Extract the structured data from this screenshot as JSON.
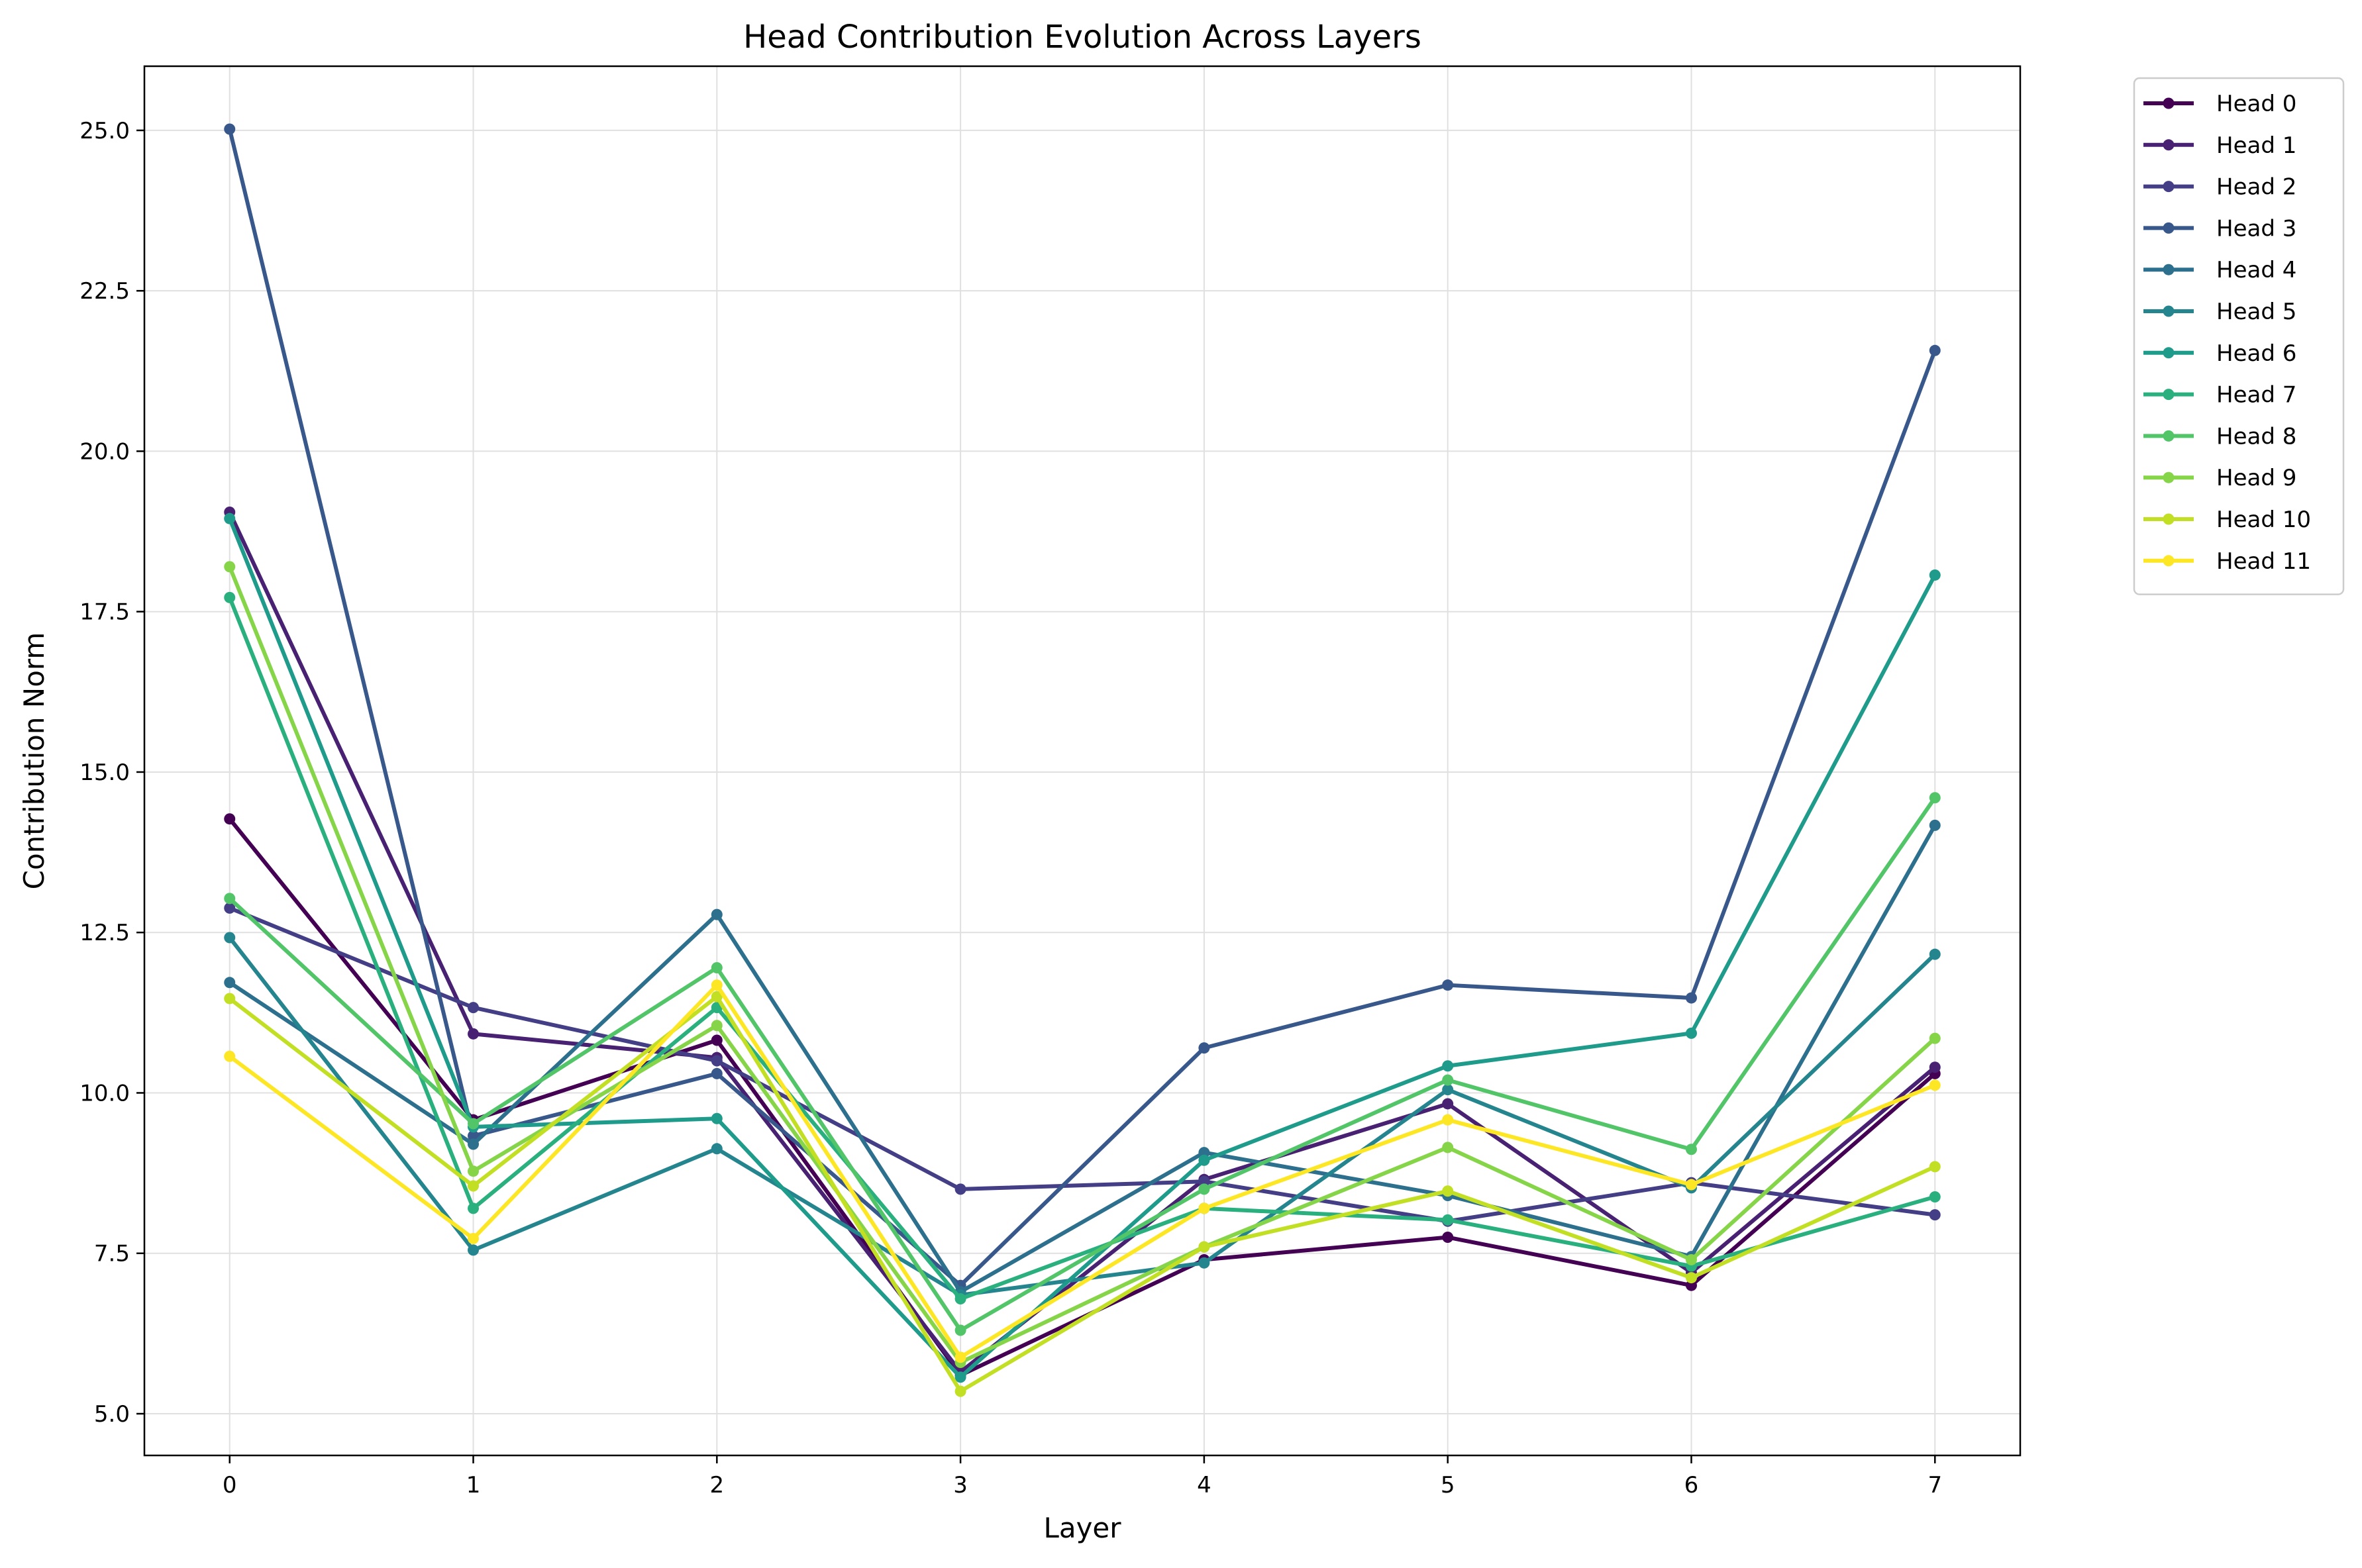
{
  "chart_data": {
    "type": "line",
    "title": "Head Contribution Evolution Across Layers",
    "xlabel": "Layer",
    "ylabel": "Contribution Norm",
    "x": [
      0,
      1,
      2,
      3,
      4,
      5,
      6,
      7
    ],
    "x_ticks": [
      "0",
      "1",
      "2",
      "3",
      "4",
      "5",
      "6",
      "7"
    ],
    "y_ticks": [
      "5.0",
      "7.5",
      "10.0",
      "12.5",
      "15.0",
      "17.5",
      "20.0",
      "22.5",
      "25.0"
    ],
    "y_tick_values": [
      5.0,
      7.5,
      10.0,
      12.5,
      15.0,
      17.5,
      20.0,
      22.5,
      25.0
    ],
    "xlim": [
      -0.35,
      7.35
    ],
    "ylim": [
      4.35,
      26.0
    ],
    "grid": true,
    "legend_position": "outside-right-top",
    "series": [
      {
        "name": "Head 0",
        "color": "#440154",
        "values": [
          14.27,
          9.58,
          10.82,
          5.6,
          7.4,
          7.75,
          7.0,
          10.3
        ]
      },
      {
        "name": "Head 1",
        "color": "#482173",
        "values": [
          19.05,
          10.92,
          10.55,
          5.65,
          8.65,
          9.83,
          7.2,
          10.4
        ]
      },
      {
        "name": "Head 2",
        "color": "#433e85",
        "values": [
          12.88,
          11.33,
          10.5,
          8.5,
          8.62,
          8.0,
          8.6,
          8.1
        ]
      },
      {
        "name": "Head 3",
        "color": "#38588c",
        "values": [
          25.02,
          9.33,
          10.3,
          7.0,
          10.7,
          11.68,
          11.48,
          21.57
        ]
      },
      {
        "name": "Head 4",
        "color": "#2d708e",
        "values": [
          11.72,
          9.2,
          12.78,
          6.9,
          9.07,
          8.4,
          7.45,
          14.17
        ]
      },
      {
        "name": "Head 5",
        "color": "#25858e",
        "values": [
          12.42,
          7.55,
          9.13,
          6.85,
          7.35,
          10.05,
          8.52,
          12.16
        ]
      },
      {
        "name": "Head 6",
        "color": "#1e9b8a",
        "values": [
          18.95,
          9.47,
          9.6,
          5.57,
          8.95,
          10.42,
          10.93,
          18.07
        ]
      },
      {
        "name": "Head 7",
        "color": "#2ab07f",
        "values": [
          17.72,
          8.2,
          11.33,
          6.79,
          8.2,
          8.02,
          7.3,
          8.38
        ]
      },
      {
        "name": "Head 8",
        "color": "#52c569",
        "values": [
          13.03,
          9.52,
          11.95,
          6.3,
          8.5,
          10.2,
          9.12,
          14.6
        ]
      },
      {
        "name": "Head 9",
        "color": "#86d549",
        "values": [
          18.2,
          8.78,
          11.05,
          5.8,
          7.6,
          9.15,
          7.4,
          10.85
        ]
      },
      {
        "name": "Head 10",
        "color": "#c2df23",
        "values": [
          11.47,
          8.55,
          11.5,
          5.35,
          7.6,
          8.47,
          7.12,
          8.85
        ]
      },
      {
        "name": "Head 11",
        "color": "#fde725",
        "values": [
          10.57,
          7.73,
          11.68,
          5.88,
          8.2,
          9.58,
          8.57,
          10.12
        ]
      }
    ]
  }
}
